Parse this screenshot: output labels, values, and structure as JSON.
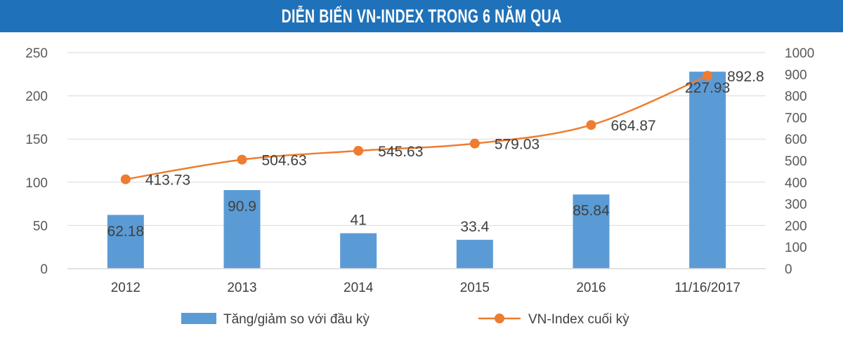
{
  "header": {
    "title": "DIỄN BIẾN VN-INDEX TRONG 6 NĂM QUA"
  },
  "colors": {
    "header_bg": "#1f72b9",
    "bar": "#5b9bd5",
    "line": "#ed7d31",
    "grid": "#d9d9d9"
  },
  "chart_data": {
    "type": "bar",
    "title": "DIỄN BIẾN VN-INDEX TRONG 6 NĂM QUA",
    "categories": [
      "2012",
      "2013",
      "2014",
      "2015",
      "2016",
      "11/16/2017"
    ],
    "series": [
      {
        "name": "Tăng/giảm so với đầu kỳ",
        "type": "bar",
        "axis": "left",
        "values": [
          62.18,
          90.9,
          41,
          33.4,
          85.84,
          227.93
        ],
        "labels": [
          "62.18",
          "90.9",
          "41",
          "33.4",
          "85.84",
          "227.93"
        ]
      },
      {
        "name": "VN-Index cuối kỳ",
        "type": "line",
        "axis": "right",
        "values": [
          413.73,
          504.63,
          545.63,
          579.03,
          664.87,
          892.8
        ],
        "labels": [
          "413.73",
          "504.63",
          "545.63",
          "579.03",
          "664.87",
          "892.8"
        ]
      }
    ],
    "y_left": {
      "min": 0,
      "max": 250,
      "ticks": [
        "0",
        "50",
        "100",
        "150",
        "200",
        "250"
      ]
    },
    "y_right": {
      "min": 0,
      "max": 1000,
      "ticks": [
        "0",
        "100",
        "200",
        "300",
        "400",
        "500",
        "600",
        "700",
        "800",
        "900",
        "1000"
      ]
    },
    "grid": true,
    "legend_position": "bottom"
  }
}
